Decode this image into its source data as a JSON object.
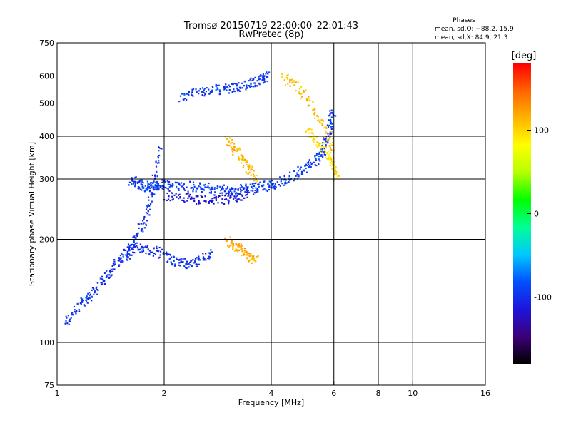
{
  "chart_data": {
    "type": "scatter",
    "title": "Tromsø 20150719 22:00:00–22:01:43",
    "subtitle": "RwPretec (8p)",
    "xlabel": "Frequency [MHz]",
    "ylabel": "Stationary phase Virtual Height [km]",
    "x_scale": "log",
    "y_scale": "log",
    "xlim": [
      1,
      16
    ],
    "ylim": [
      75,
      750
    ],
    "x_ticks": [
      1,
      2,
      4,
      6,
      8,
      10,
      16
    ],
    "x_tick_labels": [
      "1",
      "2",
      "4",
      "6",
      "8",
      "10",
      "16"
    ],
    "x_grid_lines": [
      2,
      4,
      6,
      8,
      10
    ],
    "y_ticks": [
      75,
      100,
      200,
      300,
      400,
      500,
      600,
      750
    ],
    "y_tick_labels": [
      "75",
      "100",
      "200",
      "300",
      "400",
      "500",
      "600",
      "750"
    ],
    "y_grid_lines": [
      100,
      200,
      300,
      400,
      500,
      600
    ],
    "grid": true,
    "colorbar": {
      "unit_label": "[deg]",
      "range": [
        -180,
        180
      ],
      "tick_values": [
        100,
        0,
        -100
      ],
      "tick_labels": [
        "100",
        "0",
        "-100"
      ],
      "colors": [
        "#000000",
        "#3c0078",
        "#1e14dc",
        "#0050ff",
        "#00c8ff",
        "#00ff96",
        "#00ff00",
        "#b4ff00",
        "#ffff00",
        "#ffb400",
        "#ff6400",
        "#ff0000"
      ]
    },
    "stats": {
      "header": "Phases",
      "line_o": "mean, sd,O: −88.2, 15.9",
      "line_x": "mean, sd,X:  84.9, 21.3"
    },
    "traces": [
      {
        "x": [
          2.2,
          2.5,
          2.8,
          3.1,
          3.4,
          3.7,
          3.9
        ],
        "y": [
          520,
          545,
          550,
          555,
          565,
          585,
          610
        ],
        "phase": -95
      },
      {
        "x": [
          1.6,
          1.7,
          1.8,
          1.9,
          2.0,
          2.2,
          2.5,
          2.8,
          3.1,
          3.4,
          3.7,
          4.0,
          4.4,
          4.9,
          5.3,
          5.6,
          5.8,
          5.95
        ],
        "y": [
          300,
          290,
          285,
          287,
          290,
          288,
          285,
          282,
          280,
          282,
          285,
          290,
          300,
          320,
          340,
          370,
          420,
          480
        ],
        "phase": -92
      },
      {
        "x": [
          2.0,
          2.3,
          2.6,
          2.9,
          3.2,
          3.5
        ],
        "y": [
          270,
          265,
          262,
          262,
          268,
          280
        ],
        "phase": -115
      },
      {
        "x": [
          1.05,
          1.15,
          1.25,
          1.35,
          1.45,
          1.55,
          1.65,
          1.75,
          1.85,
          1.95
        ],
        "y": [
          115,
          128,
          140,
          155,
          170,
          185,
          200,
          230,
          280,
          380
        ],
        "phase": -98
      },
      {
        "x": [
          1.55,
          1.7,
          1.9,
          2.1,
          2.3,
          2.5,
          2.7
        ],
        "y": [
          180,
          190,
          185,
          175,
          170,
          175,
          182
        ],
        "phase": -100
      },
      {
        "x": [
          3.0,
          3.2,
          3.4,
          3.6
        ],
        "y": [
          390,
          360,
          330,
          300
        ],
        "phase": 112
      },
      {
        "x": [
          3.0,
          3.2,
          3.4,
          3.6
        ],
        "y": [
          200,
          190,
          180,
          175
        ],
        "phase": 118
      },
      {
        "x": [
          4.3,
          4.8,
          5.3,
          5.8,
          6.0
        ],
        "y": [
          600,
          550,
          470,
          400,
          320
        ],
        "phase": 110
      },
      {
        "x": [
          5.0,
          5.5,
          5.9,
          6.1
        ],
        "y": [
          420,
          380,
          340,
          300
        ],
        "phase": 95
      }
    ]
  }
}
